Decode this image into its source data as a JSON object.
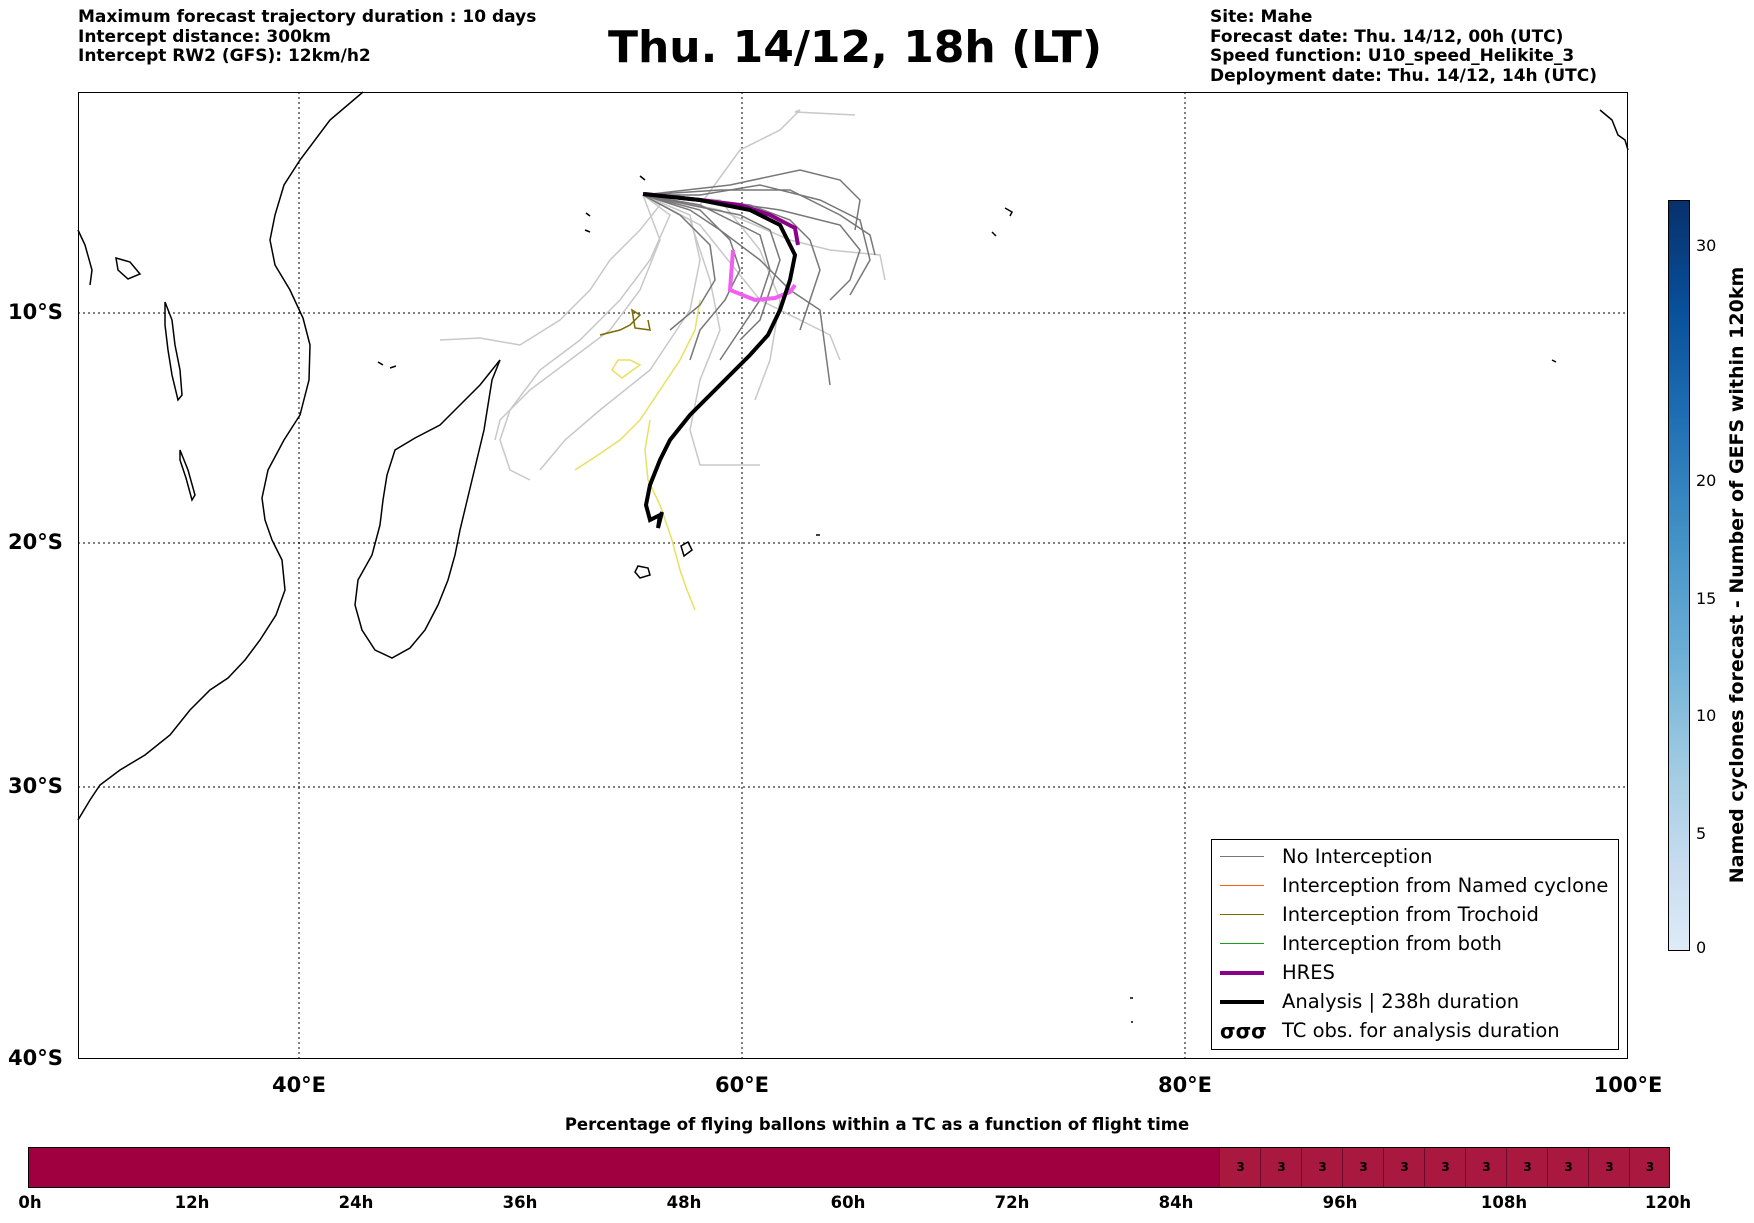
{
  "header": {
    "left": [
      "Maximum forecast trajectory duration : 10 days",
      "Intercept distance: 300km",
      "Intercept RW2 (GFS):  12km/h2"
    ],
    "title": "Thu. 14/12, 18h (LT)",
    "right": [
      "Site: Mahe",
      "Forecast date: Thu. 14/12, 00h (UTC)",
      "Speed function: U10_speed_Helikite_3",
      "Deployment date: Thu. 14/12, 14h (UTC)"
    ]
  },
  "map": {
    "lat_labels": [
      "10°S",
      "20°S",
      "30°S",
      "40°S"
    ],
    "lon_labels": [
      "40°E",
      "60°E",
      "80°E",
      "100°E"
    ],
    "colors": {
      "no_interception": "#777777",
      "no_interception_light": "#c8c8c8",
      "named_cyclone": "#ff5a1e",
      "trochoid": "#7a6a00",
      "both": "#1a9a1a",
      "hres": "#8b008b",
      "hres_light": "#f060f0",
      "analysis": "#000000",
      "yellow_tracks": "#e8e060"
    }
  },
  "legend": {
    "items": [
      {
        "label": "No Interception",
        "color": "#777777",
        "width": 1.5,
        "icon": "line"
      },
      {
        "label": "Interception from Named cyclone",
        "color": "#ff5a1e",
        "width": 1.5,
        "icon": "line"
      },
      {
        "label": "Interception from Trochoid",
        "color": "#7a6a00",
        "width": 1.5,
        "icon": "line"
      },
      {
        "label": "Interception from both",
        "color": "#1a9a1a",
        "width": 1.5,
        "icon": "line"
      },
      {
        "label": "HRES",
        "color": "#8b008b",
        "width": 4,
        "icon": "line"
      },
      {
        "label": "Analysis | 238h duration",
        "color": "#000000",
        "width": 4,
        "icon": "line"
      },
      {
        "label": "TC obs. for analysis duration",
        "color": "#000000",
        "width": 0,
        "icon": "cyclone-symbols"
      }
    ]
  },
  "colorbar": {
    "label": "Named cyclones forecast - Number of GEFS within 120km",
    "ticks": [
      "0",
      "5",
      "10",
      "15",
      "20",
      "30"
    ],
    "colors": [
      "#deebf7",
      "#c6dbef",
      "#9ecae1",
      "#6baed6",
      "#4292c6",
      "#2171b5",
      "#08519c",
      "#08306b"
    ]
  },
  "percentage_bar": {
    "title": "Percentage of flying ballons within a TC as a function of flight time",
    "time_labels": [
      "0h",
      "12h",
      "24h",
      "36h",
      "48h",
      "60h",
      "72h",
      "84h",
      "96h",
      "108h",
      "120h"
    ],
    "cell_values": [
      "3",
      "3",
      "3",
      "3",
      "3",
      "3",
      "3",
      "3",
      "3",
      "3",
      "3"
    ],
    "base_color": "#a00040",
    "cell_color": "#a8183f"
  }
}
